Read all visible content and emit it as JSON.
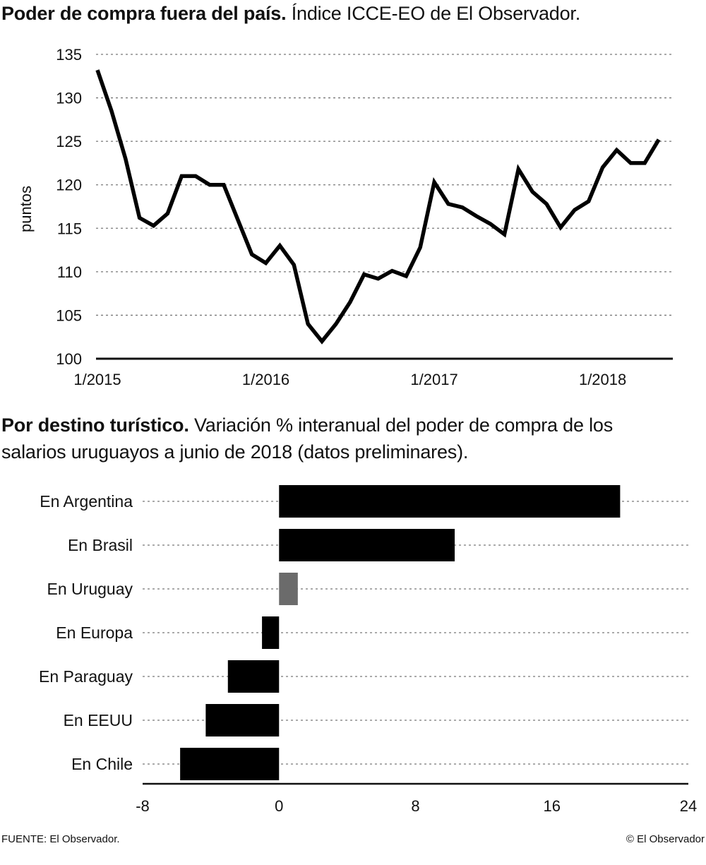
{
  "chart_data": [
    {
      "type": "line",
      "title": "Poder de compra fuera del país.",
      "subtitle": "Índice ICCE-EO de El Observador.",
      "ylabel": "puntos",
      "xlabel": "",
      "ylim": [
        100,
        135
      ],
      "yticks": [
        100,
        105,
        110,
        115,
        120,
        125,
        130,
        135
      ],
      "xtick_labels": [
        "1/2015",
        "1/2016",
        "1/2017",
        "1/2018"
      ],
      "xtick_months": [
        0,
        12,
        24,
        36
      ],
      "x_range": [
        0,
        41
      ],
      "grid": true,
      "series": [
        {
          "name": "ICCE-EO",
          "x": [
            0,
            1,
            2,
            3,
            4,
            5,
            6,
            7,
            8,
            9,
            10,
            11,
            12,
            13,
            14,
            15,
            16,
            17,
            18,
            19,
            20,
            21,
            22,
            23,
            24,
            25,
            26,
            27,
            28,
            29,
            30,
            31,
            32,
            33,
            34,
            35,
            36,
            37,
            38,
            39,
            40
          ],
          "values": [
            133.2,
            128.5,
            123.0,
            116.2,
            115.3,
            116.7,
            121.0,
            121.0,
            120.0,
            120.0,
            116.0,
            112.0,
            111.0,
            113.0,
            110.8,
            104.0,
            102.0,
            104.0,
            106.5,
            109.7,
            109.2,
            110.1,
            109.5,
            112.8,
            120.3,
            117.8,
            117.4,
            116.4,
            115.5,
            114.3,
            121.8,
            119.2,
            117.8,
            115.1,
            117.1,
            118.1,
            122.0,
            124.0,
            122.5,
            122.5,
            125.2
          ]
        }
      ]
    },
    {
      "type": "bar",
      "orientation": "horizontal",
      "title": "Por destino turístico.",
      "subtitle_line1": "Variación % interanual del poder de compra de los",
      "subtitle_line2": "salarios uruguayos a junio de 2018 (datos preliminares).",
      "categories": [
        "En Argentina",
        "En Brasil",
        "En Uruguay",
        "En Europa",
        "En Paraguay",
        "En EEUU",
        "En Chile"
      ],
      "values": [
        20.0,
        10.3,
        1.1,
        -1.0,
        -3.0,
        -4.3,
        -5.8
      ],
      "colors": [
        "#000000",
        "#000000",
        "#6b6b6b",
        "#000000",
        "#000000",
        "#000000",
        "#000000"
      ],
      "xlim": [
        -8,
        24
      ],
      "xticks": [
        -8,
        0,
        8,
        16,
        24
      ],
      "grid": true
    }
  ],
  "footer": {
    "source": "FUENTE: El Observador.",
    "credit": "© El Observador"
  }
}
